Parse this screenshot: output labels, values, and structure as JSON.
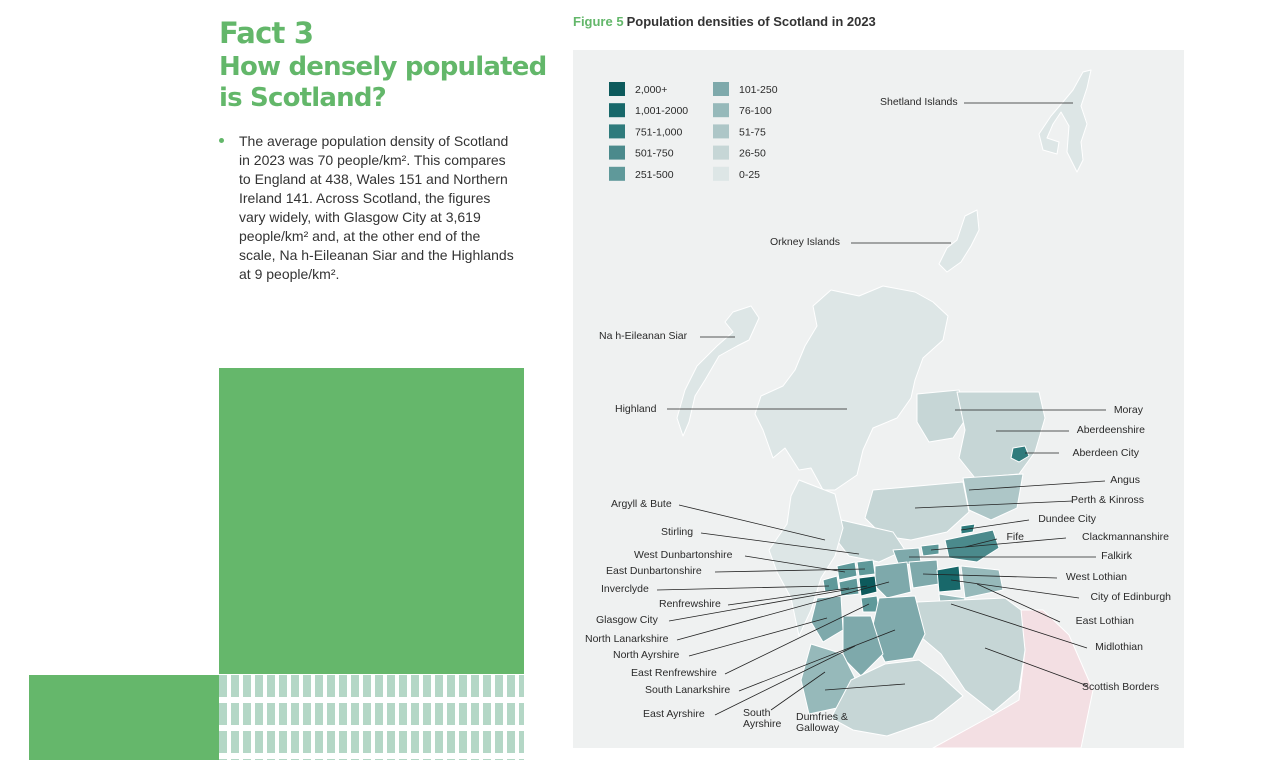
{
  "fact": {
    "number": "Fact 3",
    "question": "How densely populated is Scotland?",
    "bullet": "The average population density of Scotland in 2023 was 70 people/km². This compares to England at 438, Wales 151 and Northern Ireland 141. Across Scotland, the figures vary widely, with Glasgow City at 3,619 people/km² and, at the other end of the scale, Na h-Eileanan Siar and the Highlands at 9 people/km²."
  },
  "figure": {
    "number": "Figure 5",
    "title": "Population densities of Scotland in 2023"
  },
  "legend": [
    {
      "label": "2,000+",
      "color": "#0d5a5c"
    },
    {
      "label": "1,001-2000",
      "color": "#18686a"
    },
    {
      "label": "751-1,000",
      "color": "#2f7b7c"
    },
    {
      "label": "501-750",
      "color": "#4b8a8c"
    },
    {
      "label": "251-500",
      "color": "#5f999a"
    },
    {
      "label": "101-250",
      "color": "#7ea9ab"
    },
    {
      "label": "76-100",
      "color": "#96b9ba"
    },
    {
      "label": "51-75",
      "color": "#adc6c7"
    },
    {
      "label": "26-50",
      "color": "#c6d6d6"
    },
    {
      "label": "0-25",
      "color": "#dde6e6"
    }
  ],
  "colors": {
    "accent_green": "#63b76a",
    "map_background": "#eff1f1",
    "england": "#f3dfe3"
  },
  "regions": [
    {
      "name": "Shetland Islands"
    },
    {
      "name": "Orkney Islands"
    },
    {
      "name": "Na h-Eileanan Siar"
    },
    {
      "name": "Highland"
    },
    {
      "name": "Moray"
    },
    {
      "name": "Aberdeenshire"
    },
    {
      "name": "Aberdeen City"
    },
    {
      "name": "Angus"
    },
    {
      "name": "Perth & Kinross"
    },
    {
      "name": "Dundee City"
    },
    {
      "name": "Fife"
    },
    {
      "name": "Clackmannanshire"
    },
    {
      "name": "Falkirk"
    },
    {
      "name": "West Lothian"
    },
    {
      "name": "City of Edinburgh"
    },
    {
      "name": "East Lothian"
    },
    {
      "name": "Midlothian"
    },
    {
      "name": "Scottish Borders"
    },
    {
      "name": "Argyll & Bute"
    },
    {
      "name": "Stirling"
    },
    {
      "name": "West Dunbartonshire"
    },
    {
      "name": "East Dunbartonshire"
    },
    {
      "name": "Inverclyde"
    },
    {
      "name": "Renfrewshire"
    },
    {
      "name": "Glasgow City"
    },
    {
      "name": "North Lanarkshire"
    },
    {
      "name": "North Ayrshire"
    },
    {
      "name": "East Renfrewshire"
    },
    {
      "name": "South Lanarkshire"
    },
    {
      "name": "East Ayrshire"
    },
    {
      "name": "South Ayrshire"
    },
    {
      "name": "Dumfries & Galloway"
    }
  ]
}
